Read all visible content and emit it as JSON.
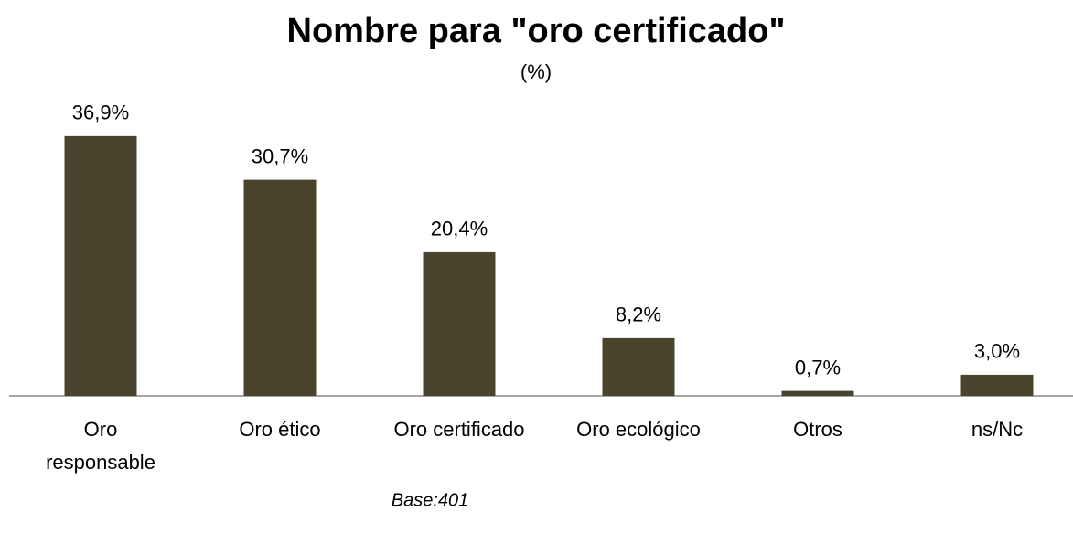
{
  "chart_data": {
    "type": "bar",
    "title": "Nombre para \"oro certificado\"",
    "subtitle": "(%)",
    "categories": [
      "Oro responsable",
      "Oro ético",
      "Oro certificado",
      "Oro ecológico",
      "Otros",
      "ns/Nc"
    ],
    "values": [
      36.9,
      30.7,
      20.4,
      8.2,
      0.7,
      3.0
    ],
    "value_labels": [
      "36,9%",
      "30,7%",
      "20,4%",
      "8,2%",
      "0,7%",
      "3,0%"
    ],
    "color": "#4b442d",
    "footnote": "Base:401"
  }
}
